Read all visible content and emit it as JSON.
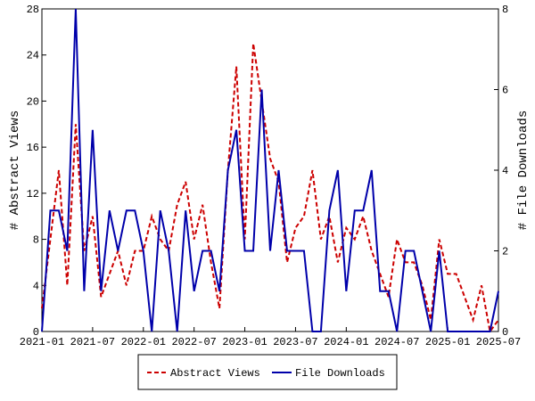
{
  "chart_data": {
    "type": "line",
    "x": [
      "2021-01",
      "2021-02",
      "2021-03",
      "2021-04",
      "2021-05",
      "2021-06",
      "2021-07",
      "2021-08",
      "2021-09",
      "2021-10",
      "2021-11",
      "2021-12",
      "2022-01",
      "2022-02",
      "2022-03",
      "2022-04",
      "2022-05",
      "2022-06",
      "2022-07",
      "2022-08",
      "2022-09",
      "2022-10",
      "2022-11",
      "2022-12",
      "2023-01",
      "2023-02",
      "2023-03",
      "2023-04",
      "2023-05",
      "2023-06",
      "2023-07",
      "2023-08",
      "2023-09",
      "2023-10",
      "2023-11",
      "2023-12",
      "2024-01",
      "2024-02",
      "2024-03",
      "2024-04",
      "2024-05",
      "2024-06",
      "2024-07",
      "2024-08",
      "2024-09",
      "2024-10",
      "2024-11",
      "2024-12",
      "2025-01",
      "2025-02",
      "2025-03",
      "2025-04",
      "2025-05",
      "2025-06",
      "2025-07"
    ],
    "xticks": [
      "2021-01",
      "2021-07",
      "2022-01",
      "2022-07",
      "2023-01",
      "2023-07",
      "2024-01",
      "2024-07",
      "2025-01",
      "2025-07"
    ],
    "ylabel": "# Abstract Views",
    "y2label": "# File Downloads",
    "ylim": [
      0,
      28
    ],
    "yticks": [
      0,
      4,
      8,
      12,
      16,
      20,
      24,
      28
    ],
    "y2lim": [
      0,
      8
    ],
    "y2ticks": [
      0,
      2,
      4,
      6,
      8
    ],
    "legend": "bottom",
    "series": [
      {
        "name": "Abstract Views",
        "color": "#cc0000",
        "dash": true,
        "values": [
          2,
          8,
          14,
          4,
          18,
          7,
          10,
          3,
          5,
          7,
          4,
          7,
          7,
          10,
          8,
          7,
          11,
          13,
          8,
          11,
          6,
          2,
          14,
          23,
          8,
          25,
          20,
          15,
          13,
          6,
          9,
          10,
          14,
          8,
          10,
          6,
          9,
          8,
          10,
          7,
          5,
          3,
          8,
          6,
          6,
          4,
          1,
          8,
          5,
          5,
          3,
          1,
          4,
          0,
          1
        ]
      },
      {
        "name": "File Downloads",
        "color": "#0000aa",
        "axis": "y2",
        "values": [
          0,
          3,
          3,
          2,
          8,
          1,
          5,
          1,
          3,
          2,
          3,
          3,
          2,
          0,
          3,
          2,
          0,
          3,
          1,
          2,
          2,
          1,
          4,
          5,
          2,
          2,
          6,
          2,
          4,
          2,
          2,
          2,
          0,
          0,
          3,
          4,
          1,
          3,
          3,
          4,
          1,
          1,
          0,
          2,
          2,
          1,
          0,
          2,
          0,
          0,
          0,
          0,
          0,
          0,
          1
        ]
      }
    ]
  }
}
